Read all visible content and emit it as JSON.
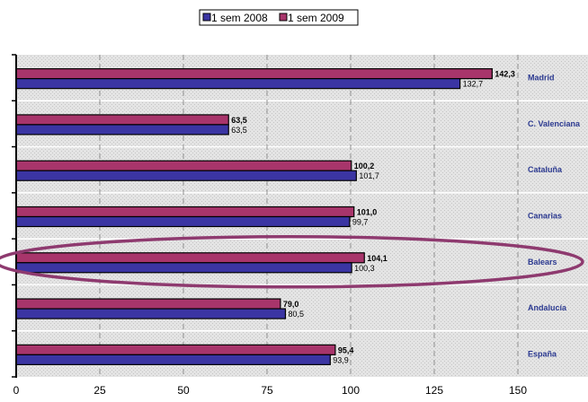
{
  "chart_data": {
    "type": "bar",
    "orientation": "horizontal",
    "categories": [
      "Madrid",
      "C. Valenciana",
      "Cataluña",
      "Canarias",
      "Balears",
      "Andalucía",
      "España"
    ],
    "series": [
      {
        "name": "1 sem 2008",
        "values": [
          132.7,
          63.5,
          101.7,
          99.7,
          100.3,
          80.5,
          93.9
        ],
        "labels": [
          "132,7",
          "63,5",
          "101,7",
          "99,7",
          "100,3",
          "80,5",
          "93,9"
        ],
        "color": "#3b35a3"
      },
      {
        "name": "1 sem 2009",
        "values": [
          142.3,
          63.5,
          100.2,
          101.0,
          104.1,
          79.0,
          95.4
        ],
        "labels": [
          "142,3",
          "63,5",
          "100,2",
          "101,0",
          "104,1",
          "79,0",
          "95,4"
        ],
        "color": "#a8356b"
      }
    ],
    "xlim": [
      0,
      150
    ],
    "xticks": [
      0,
      25,
      50,
      75,
      100,
      125,
      150
    ],
    "xtick_labels": [
      "0",
      "25",
      "50",
      "75",
      "100",
      "125",
      "150"
    ],
    "highlighted_category": "Balears",
    "highlight_color": "#8e3a6f",
    "legend_position": "top-center",
    "grid": "vertical-dashed"
  }
}
